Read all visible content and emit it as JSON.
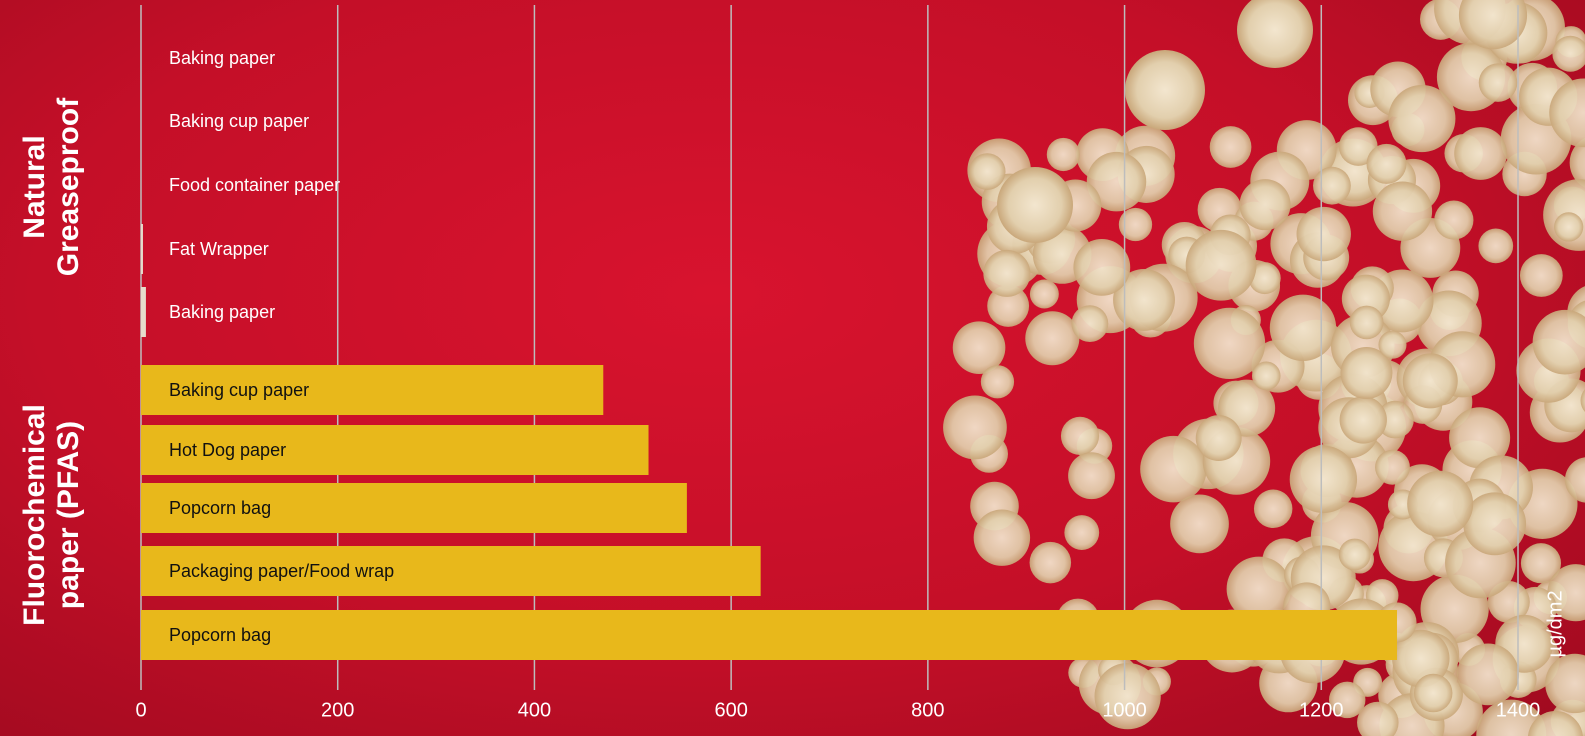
{
  "chart_data": {
    "type": "bar",
    "orientation": "horizontal",
    "x_label": "µg/dm2",
    "xlim": [
      0,
      1400
    ],
    "xticks": [
      0,
      200,
      400,
      600,
      800,
      1000,
      1200,
      1400
    ],
    "grid": true,
    "groups": [
      {
        "name": "Natural Greaseproof",
        "color": "#e6dccb",
        "label_color": "#ffffff",
        "categories": [
          "Baking paper",
          "Baking cup paper",
          "Food container paper",
          "Fat Wrapper",
          "Baking paper"
        ],
        "values": [
          0,
          0,
          0,
          2,
          5
        ]
      },
      {
        "name": "Fluorochemical paper (PFAS)",
        "color": "#e8b81b",
        "label_color": "#111111",
        "categories": [
          "Baking cup paper",
          "Hot Dog paper",
          "Popcorn bag",
          "Packaging paper/Food wrap",
          "Popcorn bag"
        ],
        "values": [
          470,
          516,
          555,
          630,
          1277
        ]
      }
    ]
  }
}
